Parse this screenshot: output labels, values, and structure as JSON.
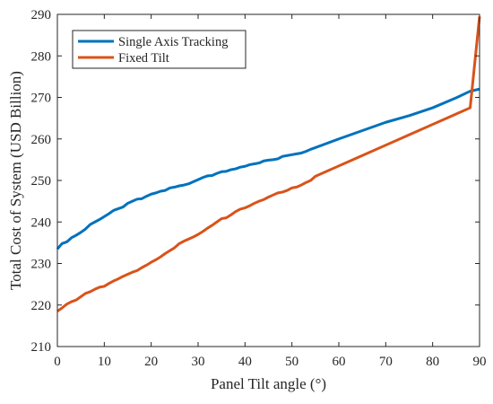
{
  "chart_data": {
    "type": "line",
    "xlabel": "Panel Tilt angle (°)",
    "ylabel": "Total Cost of System (USD Billion)",
    "xlim": [
      0,
      90
    ],
    "ylim": [
      210,
      290
    ],
    "xticks": [
      0,
      10,
      20,
      30,
      40,
      50,
      60,
      70,
      80,
      90
    ],
    "yticks": [
      210,
      220,
      230,
      240,
      250,
      260,
      270,
      280,
      290
    ],
    "grid": false,
    "legend_position": "top-left",
    "series": [
      {
        "name": "Single Axis Tracking",
        "color": "#0072BD",
        "x": [
          0,
          1,
          2,
          3,
          4,
          5,
          6,
          7,
          8,
          9,
          10,
          11,
          12,
          13,
          14,
          15,
          16,
          17,
          18,
          19,
          20,
          21,
          22,
          23,
          24,
          25,
          26,
          27,
          28,
          29,
          30,
          31,
          32,
          33,
          34,
          35,
          36,
          37,
          38,
          39,
          40,
          41,
          42,
          43,
          44,
          45,
          46,
          47,
          48,
          49,
          50,
          51,
          52,
          53,
          54,
          55,
          60,
          65,
          70,
          75,
          80,
          85,
          88,
          90
        ],
        "y": [
          233.5,
          234.8,
          235.2,
          236.2,
          236.8,
          237.5,
          238.3,
          239.4,
          240.0,
          240.6,
          241.3,
          242.0,
          242.8,
          243.2,
          243.6,
          244.5,
          245.0,
          245.5,
          245.6,
          246.2,
          246.7,
          247.0,
          247.4,
          247.6,
          248.2,
          248.4,
          248.7,
          248.9,
          249.2,
          249.7,
          250.2,
          250.7,
          251.1,
          251.2,
          251.7,
          252.1,
          252.2,
          252.6,
          252.8,
          253.2,
          253.4,
          253.8,
          254.0,
          254.2,
          254.7,
          254.9,
          255.0,
          255.2,
          255.8,
          256.0,
          256.2,
          256.4,
          256.6,
          257.0,
          257.5,
          257.9,
          260.0,
          262.0,
          264.0,
          265.6,
          267.5,
          269.9,
          271.5,
          272.0
        ]
      },
      {
        "name": "Fixed Tilt",
        "color": "#D95319",
        "x": [
          0,
          1,
          2,
          3,
          4,
          5,
          6,
          7,
          8,
          9,
          10,
          11,
          12,
          13,
          14,
          15,
          16,
          17,
          18,
          19,
          20,
          21,
          22,
          23,
          24,
          25,
          26,
          27,
          28,
          29,
          30,
          31,
          32,
          33,
          34,
          35,
          36,
          37,
          38,
          39,
          40,
          41,
          42,
          43,
          44,
          45,
          46,
          47,
          48,
          49,
          50,
          51,
          52,
          53,
          54,
          55,
          60,
          65,
          70,
          75,
          80,
          85,
          88,
          90
        ],
        "y": [
          218.5,
          219.3,
          220.2,
          220.8,
          221.2,
          222.0,
          222.8,
          223.2,
          223.8,
          224.3,
          224.5,
          225.2,
          225.8,
          226.3,
          226.9,
          227.4,
          227.9,
          228.3,
          229.0,
          229.6,
          230.3,
          230.9,
          231.6,
          232.4,
          233.1,
          233.8,
          234.8,
          235.4,
          235.9,
          236.4,
          237.0,
          237.7,
          238.5,
          239.2,
          240.0,
          240.8,
          241.0,
          241.7,
          242.5,
          243.1,
          243.4,
          243.9,
          244.5,
          245.0,
          245.4,
          246.0,
          246.5,
          247.0,
          247.2,
          247.6,
          248.2,
          248.4,
          248.9,
          249.5,
          250.0,
          251.0,
          253.5,
          256.0,
          258.5,
          261.0,
          263.5,
          266.0,
          267.5,
          289.5
        ]
      }
    ]
  }
}
